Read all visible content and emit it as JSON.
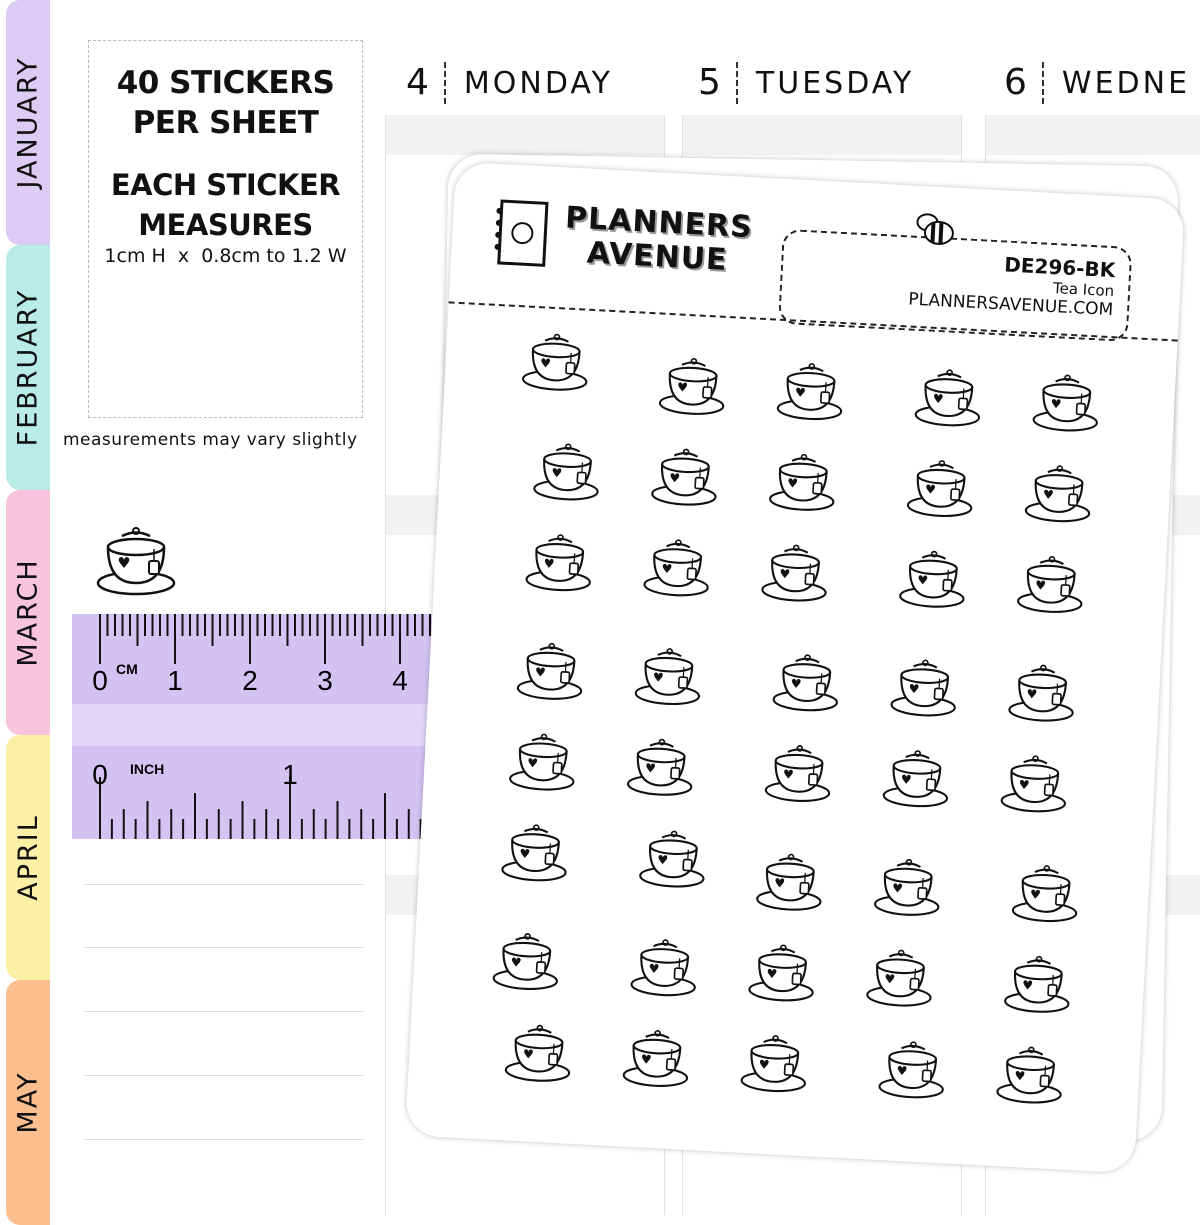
{
  "months": [
    {
      "label": "JANUARY",
      "color": "#dccbf2"
    },
    {
      "label": "FEBRUARY",
      "color": "#b9ece6"
    },
    {
      "label": "MARCH",
      "color": "#f8c4dc"
    },
    {
      "label": "APRIL",
      "color": "#fbf0a6"
    },
    {
      "label": "MAY",
      "color": "#fbbf8f"
    }
  ],
  "info": {
    "line1": "40 STICKERS",
    "line2": "PER SHEET",
    "line3": "EACH STICKER",
    "line4": "MEASURES",
    "size": "1cm H  x  0.8cm to 1.2 W",
    "note": "measurements may vary slightly"
  },
  "days": [
    {
      "num": "4",
      "name": "MONDAY"
    },
    {
      "num": "5",
      "name": "TUESDAY"
    },
    {
      "num": "6",
      "name": "WEDNE"
    }
  ],
  "ruler": {
    "cm_unit": "CM",
    "cm_labels": [
      "0",
      "1",
      "2",
      "3",
      "4"
    ],
    "inch_unit": "INCH",
    "inch_labels": [
      "0",
      "1"
    ],
    "color": "#d3c3f3"
  },
  "sheet": {
    "brand_line1": "PLANNERS",
    "brand_line2": "AVENUE",
    "code": "DE296-BK",
    "name": "Tea Icon",
    "website": "PLANNERSAVENUE.COM",
    "sticker_count": 40,
    "icon": "tea-cup-icon"
  }
}
